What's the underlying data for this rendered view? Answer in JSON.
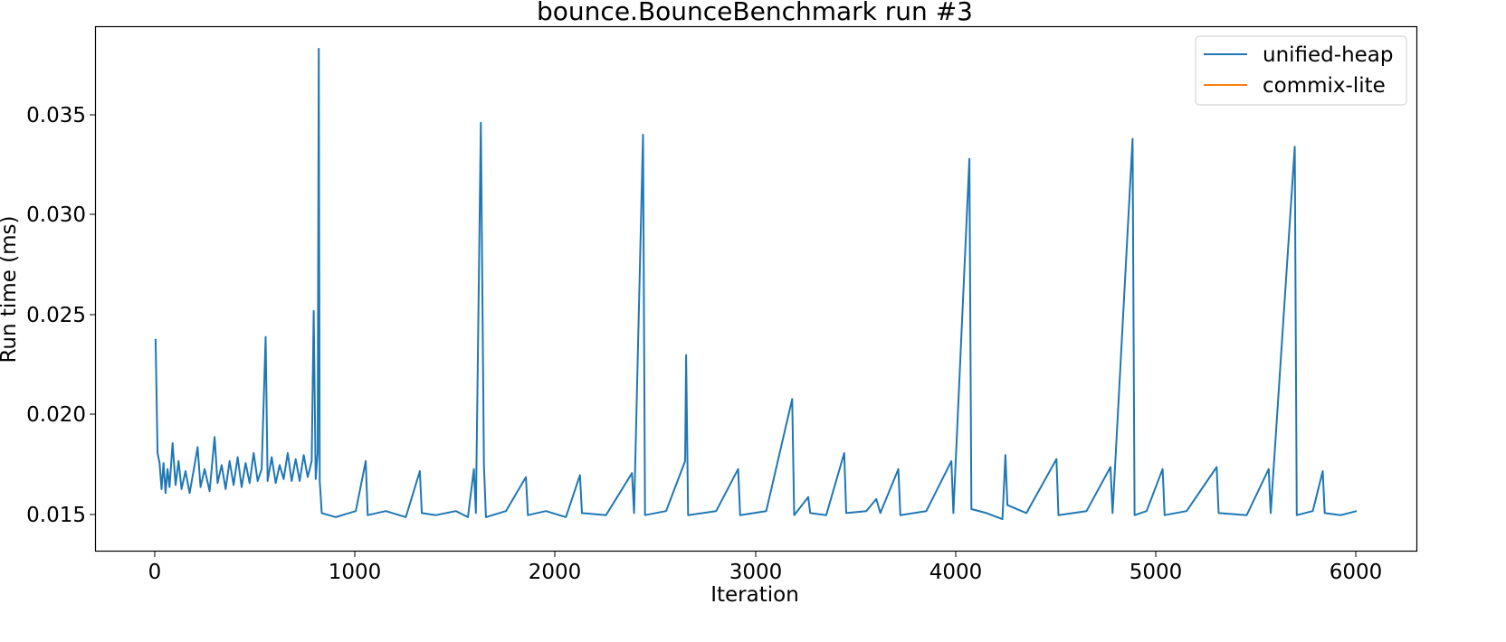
{
  "chart_data": {
    "type": "line",
    "title": "bounce.BounceBenchmark run #3",
    "xlabel": "Iteration",
    "ylabel": "Run time (ms)",
    "xlim": [
      -300,
      6300
    ],
    "ylim": [
      0.0131,
      0.0393
    ],
    "xticks": [
      0,
      1000,
      2000,
      3000,
      4000,
      5000,
      6000
    ],
    "xtick_labels": [
      "0",
      "1000",
      "2000",
      "3000",
      "4000",
      "5000",
      "6000"
    ],
    "yticks": [
      0.015,
      0.02,
      0.025,
      0.03,
      0.035
    ],
    "ytick_labels": [
      "0.015",
      "0.020",
      "0.025",
      "0.030",
      "0.035"
    ],
    "grid": false,
    "legend_position": "top-right",
    "series": [
      {
        "name": "unified-heap",
        "color": "#1f77b4",
        "points": [
          [
            0,
            0.0237
          ],
          [
            10,
            0.018
          ],
          [
            20,
            0.0175
          ],
          [
            30,
            0.0162
          ],
          [
            40,
            0.0175
          ],
          [
            50,
            0.016
          ],
          [
            60,
            0.0172
          ],
          [
            70,
            0.0163
          ],
          [
            85,
            0.0185
          ],
          [
            100,
            0.0164
          ],
          [
            115,
            0.0176
          ],
          [
            130,
            0.0162
          ],
          [
            150,
            0.0171
          ],
          [
            170,
            0.016
          ],
          [
            195,
            0.0174
          ],
          [
            210,
            0.0183
          ],
          [
            225,
            0.0163
          ],
          [
            245,
            0.0172
          ],
          [
            270,
            0.0161
          ],
          [
            295,
            0.0188
          ],
          [
            310,
            0.0165
          ],
          [
            330,
            0.0174
          ],
          [
            350,
            0.0162
          ],
          [
            370,
            0.0176
          ],
          [
            390,
            0.0164
          ],
          [
            410,
            0.0178
          ],
          [
            430,
            0.0163
          ],
          [
            450,
            0.0175
          ],
          [
            470,
            0.0165
          ],
          [
            490,
            0.018
          ],
          [
            510,
            0.0166
          ],
          [
            530,
            0.0172
          ],
          [
            550,
            0.0238
          ],
          [
            560,
            0.0166
          ],
          [
            580,
            0.0178
          ],
          [
            600,
            0.0165
          ],
          [
            620,
            0.0174
          ],
          [
            640,
            0.0167
          ],
          [
            660,
            0.018
          ],
          [
            680,
            0.0166
          ],
          [
            700,
            0.0177
          ],
          [
            720,
            0.0166
          ],
          [
            740,
            0.0179
          ],
          [
            760,
            0.0168
          ],
          [
            780,
            0.0176
          ],
          [
            790,
            0.0251
          ],
          [
            800,
            0.0167
          ],
          [
            810,
            0.018
          ],
          [
            815,
            0.0382
          ],
          [
            820,
            0.0166
          ],
          [
            830,
            0.015
          ],
          [
            900,
            0.0148
          ],
          [
            1000,
            0.0151
          ],
          [
            1050,
            0.0176
          ],
          [
            1060,
            0.0149
          ],
          [
            1150,
            0.0151
          ],
          [
            1250,
            0.0148
          ],
          [
            1320,
            0.0171
          ],
          [
            1330,
            0.015
          ],
          [
            1400,
            0.0149
          ],
          [
            1500,
            0.0151
          ],
          [
            1560,
            0.0148
          ],
          [
            1590,
            0.0172
          ],
          [
            1600,
            0.015
          ],
          [
            1625,
            0.0345
          ],
          [
            1640,
            0.0174
          ],
          [
            1650,
            0.0148
          ],
          [
            1750,
            0.0151
          ],
          [
            1850,
            0.0168
          ],
          [
            1860,
            0.0149
          ],
          [
            1950,
            0.0151
          ],
          [
            2050,
            0.0148
          ],
          [
            2120,
            0.0169
          ],
          [
            2130,
            0.015
          ],
          [
            2250,
            0.0149
          ],
          [
            2380,
            0.017
          ],
          [
            2390,
            0.015
          ],
          [
            2435,
            0.0339
          ],
          [
            2445,
            0.0149
          ],
          [
            2550,
            0.0151
          ],
          [
            2645,
            0.0176
          ],
          [
            2650,
            0.0229
          ],
          [
            2660,
            0.0149
          ],
          [
            2800,
            0.0151
          ],
          [
            2910,
            0.0172
          ],
          [
            2920,
            0.0149
          ],
          [
            3050,
            0.0151
          ],
          [
            3180,
            0.0207
          ],
          [
            3190,
            0.0149
          ],
          [
            3260,
            0.0158
          ],
          [
            3270,
            0.015
          ],
          [
            3350,
            0.0149
          ],
          [
            3440,
            0.018
          ],
          [
            3450,
            0.015
          ],
          [
            3550,
            0.0151
          ],
          [
            3600,
            0.0157
          ],
          [
            3620,
            0.015
          ],
          [
            3710,
            0.0172
          ],
          [
            3720,
            0.0149
          ],
          [
            3850,
            0.0151
          ],
          [
            3975,
            0.0176
          ],
          [
            3985,
            0.015
          ],
          [
            4065,
            0.0327
          ],
          [
            4075,
            0.0152
          ],
          [
            4150,
            0.015
          ],
          [
            4230,
            0.0147
          ],
          [
            4245,
            0.0179
          ],
          [
            4255,
            0.0154
          ],
          [
            4350,
            0.015
          ],
          [
            4500,
            0.0177
          ],
          [
            4510,
            0.0149
          ],
          [
            4650,
            0.0151
          ],
          [
            4770,
            0.0173
          ],
          [
            4780,
            0.015
          ],
          [
            4880,
            0.0337
          ],
          [
            4890,
            0.0149
          ],
          [
            4950,
            0.0151
          ],
          [
            5030,
            0.0172
          ],
          [
            5040,
            0.0149
          ],
          [
            5150,
            0.0151
          ],
          [
            5300,
            0.0173
          ],
          [
            5310,
            0.015
          ],
          [
            5450,
            0.0149
          ],
          [
            5560,
            0.0172
          ],
          [
            5570,
            0.015
          ],
          [
            5690,
            0.0333
          ],
          [
            5700,
            0.0149
          ],
          [
            5780,
            0.0151
          ],
          [
            5830,
            0.0171
          ],
          [
            5840,
            0.015
          ],
          [
            5920,
            0.0149
          ],
          [
            6000,
            0.0151
          ]
        ]
      },
      {
        "name": "commix-lite",
        "color": "#ff7f0e",
        "points": []
      }
    ]
  }
}
